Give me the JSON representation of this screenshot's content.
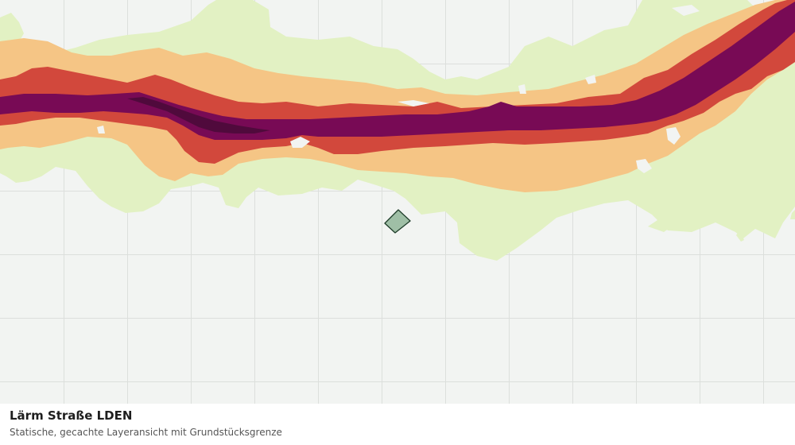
{
  "layer": {
    "title": "Lärm Straße LDEN",
    "subtitle": "Statische, gecachte Layeransicht mit Grundstücksgrenze"
  },
  "colors": {
    "background": "#f2f4f2",
    "grid_line": "#dcdfdc",
    "noise_class_lowest": "#e2f1c3",
    "noise_class_low": "#f5c585",
    "noise_class_mid": "#d2483c",
    "noise_class_high": "#780a55",
    "noise_class_highest": "#500a3c",
    "parcel_fill": "#9fbfa6",
    "parcel_stroke": "#1f3d2a"
  }
}
